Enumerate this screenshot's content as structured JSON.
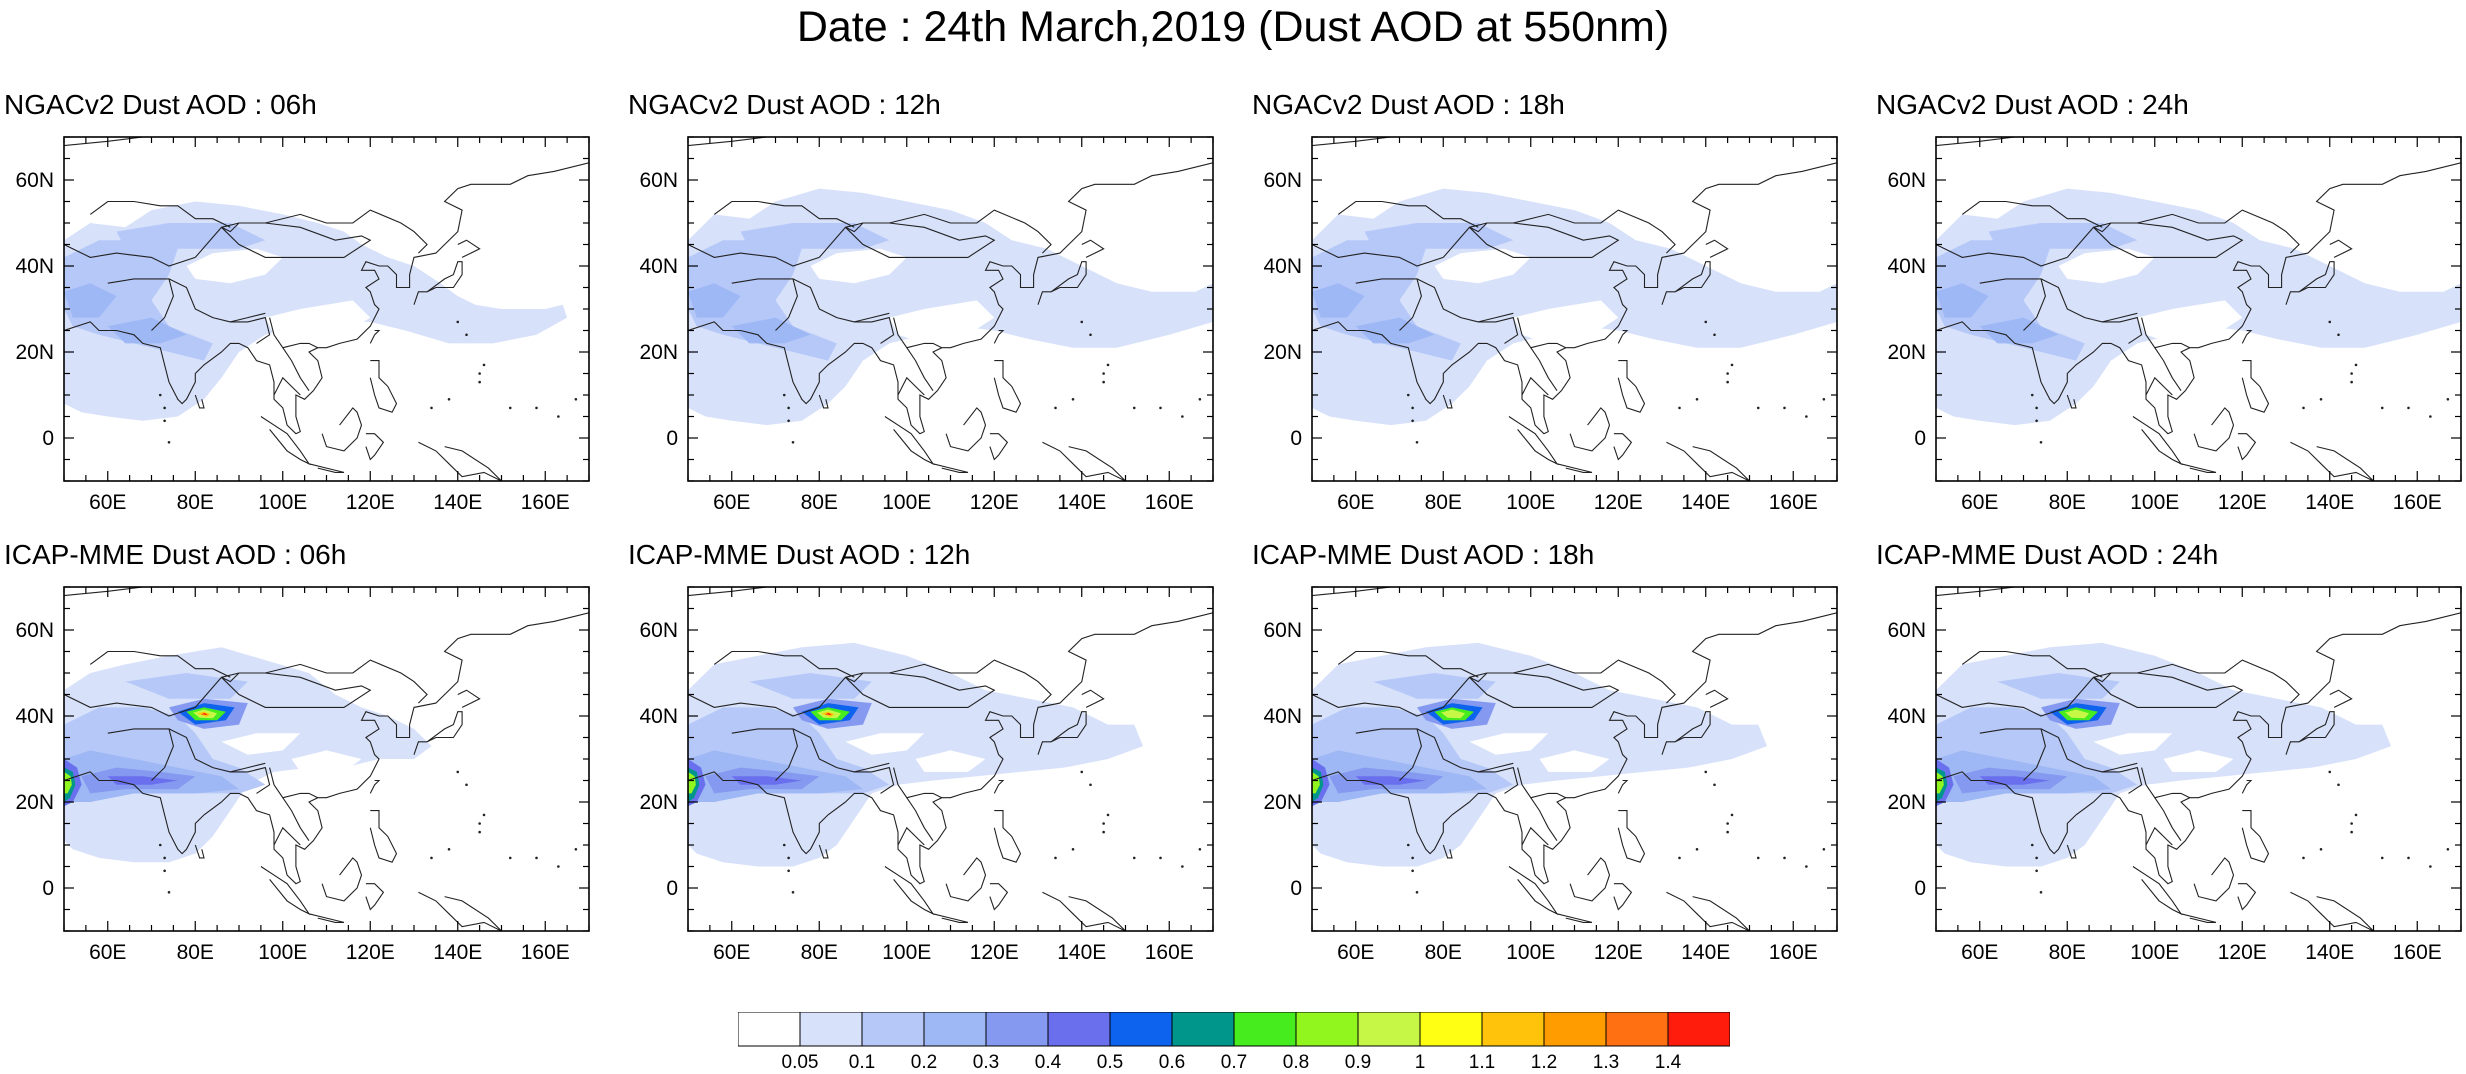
{
  "title": "Date : 24th March,2019 (Dust AOD at 550nm)",
  "axes": {
    "lon_range": [
      50,
      170
    ],
    "lat_range": [
      -10,
      70
    ],
    "x_ticks": [
      "60E",
      "80E",
      "100E",
      "120E",
      "140E",
      "160E"
    ],
    "y_ticks": [
      "60N",
      "40N",
      "20N",
      "0"
    ]
  },
  "panels": [
    {
      "title": "NGACv2 Dust AOD : 06h",
      "model": "NGACv2",
      "hour": "06h"
    },
    {
      "title": "NGACv2 Dust AOD : 12h",
      "model": "NGACv2",
      "hour": "12h"
    },
    {
      "title": "NGACv2 Dust AOD : 18h",
      "model": "NGACv2",
      "hour": "18h"
    },
    {
      "title": "NGACv2 Dust AOD : 24h",
      "model": "NGACv2",
      "hour": "24h"
    },
    {
      "title": "ICAP-MME Dust AOD : 06h",
      "model": "ICAP-MME",
      "hour": "06h"
    },
    {
      "title": "ICAP-MME Dust AOD : 12h",
      "model": "ICAP-MME",
      "hour": "12h"
    },
    {
      "title": "ICAP-MME Dust AOD : 18h",
      "model": "ICAP-MME",
      "hour": "18h"
    },
    {
      "title": "ICAP-MME Dust AOD : 24h",
      "model": "ICAP-MME",
      "hour": "24h"
    }
  ],
  "colorbar": {
    "labels": [
      "0.05",
      "0.1",
      "0.2",
      "0.3",
      "0.4",
      "0.5",
      "0.6",
      "0.7",
      "0.8",
      "0.9",
      "1",
      "1.1",
      "1.2",
      "1.3",
      "1.4"
    ],
    "colors": [
      "#ffffff",
      "#d7e1fa",
      "#b6c8f8",
      "#9eb7f5",
      "#8599f0",
      "#6a6fee",
      "#0e63ee",
      "#00968c",
      "#46ec1e",
      "#91f51e",
      "#c6f746",
      "#ffff14",
      "#fec30a",
      "#ff9c00",
      "#ff7012",
      "#ff1c0c"
    ]
  }
}
